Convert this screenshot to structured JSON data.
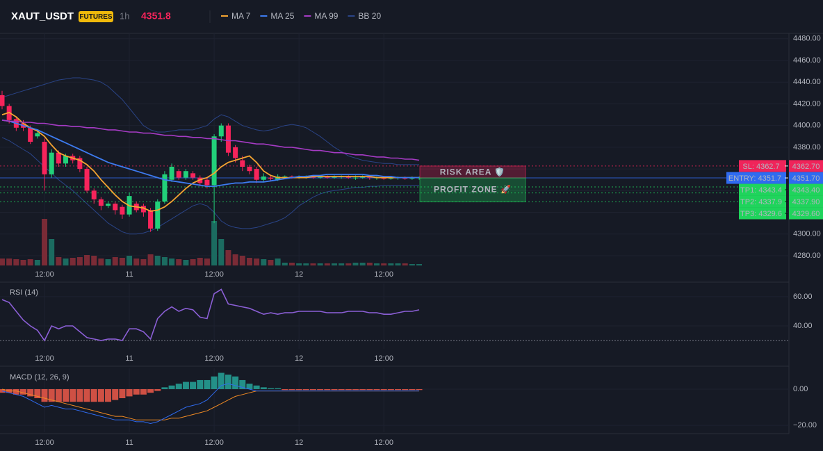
{
  "header": {
    "symbol": "XAUT_USDT",
    "badge": "FUTURES",
    "interval": "1h",
    "price": "4351.8"
  },
  "chart_data": [
    {
      "type": "candlestick",
      "categories": [
        null,
        null,
        null,
        null,
        null,
        null,
        "12:00",
        null,
        null,
        null,
        null,
        null,
        null,
        null,
        null,
        null,
        null,
        null,
        "11",
        null,
        null,
        null,
        null,
        null,
        null,
        null,
        null,
        null,
        null,
        null,
        "12:00",
        null,
        null,
        null,
        null,
        null,
        null,
        null,
        null,
        null,
        null,
        null,
        "12",
        null,
        null,
        null,
        null,
        null,
        null,
        null,
        null,
        null,
        null,
        null,
        "12:00",
        null,
        null,
        null,
        null,
        null
      ],
      "open": [
        4428,
        4418,
        4406,
        4402,
        4398,
        4390,
        4385,
        4355,
        4375,
        4365,
        4372,
        4370,
        4360,
        4340,
        4332,
        4326,
        4328,
        4325,
        4318,
        4328,
        4326,
        4322,
        4305,
        4330,
        4350,
        4358,
        4352,
        4356,
        4352,
        4350,
        4345,
        4390,
        4400,
        4380,
        4368,
        4362,
        4360,
        4350,
        4352,
        4350,
        4352,
        4353,
        4352,
        4353,
        4353,
        4352,
        4353,
        4352,
        4353,
        4353,
        4352,
        4352,
        4353,
        4352,
        4352,
        4351,
        4352,
        4352,
        4351,
        4352
      ],
      "high": [
        4432,
        4420,
        4408,
        4405,
        4400,
        4396,
        4388,
        4378,
        4377,
        4374,
        4374,
        4372,
        4362,
        4342,
        4334,
        4330,
        4330,
        4327,
        4338,
        4330,
        4328,
        4324,
        4332,
        4358,
        4365,
        4360,
        4360,
        4358,
        4354,
        4352,
        4392,
        4402,
        4402,
        4382,
        4372,
        4364,
        4362,
        4356,
        4354,
        4355,
        4354,
        4354,
        4354,
        4354,
        4354,
        4354,
        4354,
        4354,
        4354,
        4354,
        4354,
        4354,
        4354,
        4353,
        4353,
        4353,
        4353,
        4353,
        4353,
        4353
      ],
      "low": [
        4415,
        4402,
        4395,
        4395,
        4383,
        4388,
        4340,
        4352,
        4362,
        4362,
        4365,
        4357,
        4338,
        4328,
        4322,
        4324,
        4318,
        4314,
        4316,
        4320,
        4316,
        4302,
        4303,
        4328,
        4348,
        4350,
        4350,
        4350,
        4344,
        4342,
        4310,
        4385,
        4372,
        4366,
        4358,
        4355,
        4347,
        4348,
        4349,
        4349,
        4351,
        4351,
        4351,
        4351,
        4351,
        4351,
        4351,
        4351,
        4351,
        4351,
        4350,
        4351,
        4350,
        4350,
        4350,
        4350,
        4350,
        4350,
        4350,
        4350
      ],
      "close": [
        4418,
        4405,
        4398,
        4398,
        4385,
        4393,
        4355,
        4375,
        4365,
        4372,
        4368,
        4360,
        4340,
        4332,
        4326,
        4328,
        4322,
        4318,
        4335,
        4322,
        4320,
        4305,
        4330,
        4355,
        4362,
        4352,
        4358,
        4352,
        4347,
        4345,
        4390,
        4400,
        4375,
        4370,
        4362,
        4358,
        4350,
        4353,
        4351,
        4353,
        4353,
        4352,
        4353,
        4353,
        4352,
        4353,
        4352,
        4353,
        4353,
        4352,
        4352,
        4353,
        4352,
        4352,
        4351,
        4352,
        4352,
        4351,
        4352,
        4352
      ],
      "volume": [
        10,
        10,
        9,
        8,
        9,
        8,
        67,
        38,
        12,
        10,
        11,
        12,
        15,
        14,
        10,
        9,
        12,
        11,
        14,
        10,
        9,
        16,
        14,
        12,
        10,
        9,
        8,
        9,
        11,
        10,
        64,
        38,
        22,
        16,
        14,
        11,
        10,
        9,
        8,
        10,
        4,
        4,
        3,
        3,
        3,
        3,
        3,
        3,
        3,
        3,
        4,
        4,
        4,
        3,
        3,
        3,
        3,
        3,
        2,
        2
      ],
      "up_color": "#22d07a",
      "down_color": "#f7245b",
      "volume_up_color": "#1b6b60",
      "volume_down_color": "#7a2b36",
      "series": [
        {
          "name": "MA 7",
          "color": "#f5a431",
          "values": [
            4410,
            4412,
            4408,
            4402,
            4398,
            4395,
            4390,
            4382,
            4375,
            4372,
            4370,
            4368,
            4364,
            4358,
            4350,
            4343,
            4336,
            4330,
            4326,
            4325,
            4324,
            4321,
            4322,
            4325,
            4330,
            4336,
            4342,
            4347,
            4350,
            4352,
            4356,
            4362,
            4366,
            4368,
            4370,
            4372,
            4366,
            4358,
            4354,
            4352,
            4352,
            4352,
            4352,
            4352,
            4353,
            4353,
            4353,
            4353,
            4353,
            4353,
            4353,
            4353,
            4353,
            4352,
            4352,
            4352,
            4352,
            4352,
            4352,
            4352
          ]
        },
        {
          "name": "MA 25",
          "color": "#3d7bf0",
          "values": [
            4405,
            4404,
            4402,
            4400,
            4398,
            4396,
            4393,
            4390,
            4387,
            4384,
            4381,
            4378,
            4375,
            4372,
            4369,
            4366,
            4364,
            4362,
            4360,
            4358,
            4356,
            4354,
            4352,
            4350,
            4349,
            4348,
            4347,
            4346,
            4345,
            4344,
            4344,
            4345,
            4346,
            4347,
            4347,
            4348,
            4348,
            4348,
            4349,
            4350,
            4351,
            4352,
            4353,
            4353,
            4354,
            4354,
            4355,
            4355,
            4355,
            4355,
            4355,
            4355,
            4354,
            4354,
            4353,
            4353,
            4352,
            4352,
            4352,
            4352
          ]
        },
        {
          "name": "MA 99",
          "color": "#a53bc4",
          "values": [
            4405,
            4404,
            4404,
            4403,
            4403,
            4402,
            4402,
            4401,
            4400,
            4400,
            4399,
            4399,
            4398,
            4398,
            4397,
            4396,
            4396,
            4395,
            4394,
            4394,
            4393,
            4393,
            4392,
            4391,
            4391,
            4390,
            4390,
            4389,
            4389,
            4388,
            4388,
            4387,
            4386,
            4386,
            4385,
            4384,
            4383,
            4383,
            4382,
            4381,
            4380,
            4380,
            4379,
            4378,
            4377,
            4377,
            4376,
            4375,
            4375,
            4374,
            4373,
            4373,
            4372,
            4371,
            4371,
            4370,
            4370,
            4369,
            4369,
            4368
          ]
        },
        {
          "name": "BB 20",
          "color": "#2a4487",
          "upper": [
            4426,
            4428,
            4430,
            4432,
            4434,
            4436,
            4438,
            4440,
            4442,
            4443,
            4444,
            4444,
            4443,
            4442,
            4440,
            4436,
            4430,
            4424,
            4416,
            4408,
            4400,
            4396,
            4394,
            4394,
            4395,
            4396,
            4396,
            4396,
            4398,
            4400,
            4406,
            4410,
            4408,
            4404,
            4400,
            4398,
            4396,
            4395,
            4396,
            4398,
            4400,
            4401,
            4400,
            4398,
            4394,
            4390,
            4385,
            4380,
            4376,
            4372,
            4370,
            4368,
            4367,
            4366,
            4365,
            4365,
            4364,
            4364,
            4364,
            4364
          ],
          "lower": [
            4389,
            4386,
            4382,
            4378,
            4374,
            4368,
            4362,
            4356,
            4350,
            4345,
            4340,
            4334,
            4328,
            4322,
            4316,
            4310,
            4306,
            4302,
            4300,
            4300,
            4301,
            4303,
            4306,
            4310,
            4314,
            4318,
            4322,
            4326,
            4328,
            4326,
            4320,
            4312,
            4308,
            4306,
            4305,
            4305,
            4306,
            4308,
            4310,
            4312,
            4315,
            4320,
            4326,
            4330,
            4334,
            4337,
            4339,
            4340,
            4341,
            4342,
            4343,
            4343,
            4344,
            4344,
            4345,
            4345,
            4345,
            4345,
            4345,
            4345
          ]
        }
      ],
      "ylim": [
        4271,
        4485
      ],
      "yticks": [
        {
          "value": 4280,
          "label": "4280.00"
        },
        {
          "value": 4300,
          "label": "4300.00"
        },
        {
          "value": 4320,
          "label": "4320.00"
        },
        {
          "value": 4340,
          "label": "4340.00"
        },
        {
          "value": 4360,
          "label": "4360.00"
        },
        {
          "value": 4380,
          "label": "4380.00"
        },
        {
          "value": 4400,
          "label": "4400.00"
        },
        {
          "value": 4420,
          "label": "4420.00"
        },
        {
          "value": 4440,
          "label": "4440.00"
        },
        {
          "value": 4460,
          "label": "4460.00"
        },
        {
          "value": 4480,
          "label": "4480.00"
        }
      ],
      "levels": [
        {
          "label": "SL: 4362.7",
          "value_label": "4362.70",
          "value": 4362.7,
          "color": "#f0245a",
          "text_color": "#ffffff",
          "line_style": "dotted"
        },
        {
          "label": "ENTRY: 4351.7",
          "value_label": "4351.70",
          "value": 4351.7,
          "color": "#2f6bf0",
          "text_color": "#ffffff",
          "line_style": "solid"
        },
        {
          "label": "TP1: 4343.4",
          "value_label": "4343.40",
          "value": 4343.4,
          "color": "#1fd45c",
          "text_color": "#0b1a10",
          "line_style": "dotted"
        },
        {
          "label": "TP2: 4337.9",
          "value_label": "4337.90",
          "value": 4337.9,
          "color": "#1fd45c",
          "text_color": "#0b1a10",
          "line_style": "dotted"
        },
        {
          "label": "TP3: 4329.6",
          "value_label": "4329.60",
          "value": 4329.6,
          "color": "#1fd45c",
          "text_color": "#0b1a10",
          "line_style": "dotted"
        }
      ],
      "zones": [
        {
          "label": "RISK AREA 🛡️",
          "range": [
            4351.7,
            4362.7
          ],
          "color": "#f0245a"
        },
        {
          "label": "PROFIT ZONE 🚀",
          "range": [
            4329.6,
            4351.7
          ],
          "color": "#1fd45c"
        }
      ]
    },
    {
      "type": "line",
      "title": "RSI (14)",
      "color": "#8b5fd6",
      "values": [
        58,
        56,
        50,
        44,
        40,
        37,
        30,
        40,
        38,
        40,
        40,
        36,
        32,
        31,
        30,
        31,
        31,
        30,
        38,
        38,
        36,
        31,
        45,
        50,
        53,
        50,
        52,
        51,
        46,
        45,
        62,
        65,
        55,
        54,
        53,
        52,
        50,
        48,
        49,
        48,
        49,
        49,
        50,
        50,
        50,
        50,
        49,
        49,
        49,
        50,
        50,
        50,
        49,
        49,
        48,
        48,
        49,
        50,
        50,
        51
      ],
      "ylim": [
        24.3,
        69
      ],
      "yticks": [
        {
          "value": 40,
          "label": "40.00"
        },
        {
          "value": 60,
          "label": "60.00"
        }
      ],
      "ref_line": 30
    },
    {
      "type": "macd",
      "title": "MACD (12, 26, 9)",
      "macd": [
        -1,
        -2,
        -3,
        -4,
        -6,
        -8,
        -10,
        -9,
        -10,
        -11,
        -11,
        -12,
        -13,
        -14,
        -15,
        -16,
        -17,
        -17,
        -17,
        -18,
        -18,
        -19,
        -18,
        -16,
        -14,
        -12,
        -10,
        -9,
        -8,
        -6,
        -2,
        2,
        3,
        2,
        1,
        0,
        -1,
        -1,
        -1,
        -1,
        -1,
        -1,
        -1,
        -1,
        -1,
        -1,
        -1,
        -1,
        -1,
        -1,
        -1,
        -1,
        -1,
        -1,
        -1,
        -1,
        -1,
        -1,
        -1,
        -1
      ],
      "signal": [
        0,
        -1,
        -1,
        -2,
        -3,
        -4,
        -5,
        -6,
        -7,
        -8,
        -9,
        -10,
        -11,
        -12,
        -13,
        -14,
        -15,
        -15,
        -16,
        -17,
        -17,
        -17,
        -17,
        -17,
        -16,
        -16,
        -15,
        -14,
        -13,
        -12,
        -10,
        -8,
        -6,
        -4,
        -3,
        -2,
        -1,
        -1,
        -1,
        -1,
        -1,
        -1,
        -1,
        -1,
        -1,
        -1,
        -1,
        -1,
        -1,
        -1,
        -1,
        -1,
        -1,
        -1,
        -1,
        -1,
        -1,
        -1,
        -1,
        -1
      ],
      "histogram": [
        -2,
        -2,
        -3,
        -3,
        -4,
        -5,
        -7,
        -7,
        -7,
        -7,
        -7,
        -7,
        -7,
        -7,
        -7,
        -7,
        -6,
        -5,
        -4,
        -3,
        -3,
        -2,
        -1,
        1,
        2,
        3,
        4,
        4,
        5,
        5,
        7,
        9,
        8,
        7,
        5,
        3,
        2,
        1,
        0.5,
        0.5,
        -0.5,
        -0.5,
        -0.5,
        -0.5,
        -0.5,
        -0.5,
        -0.5,
        -0.5,
        -0.5,
        -0.5,
        -0.5,
        -0.5,
        -0.5,
        -0.5,
        -0.5,
        -0.5,
        -0.5,
        -0.5,
        -0.5,
        -0.5
      ],
      "macd_color": "#2f6bf0",
      "signal_color": "#f08a24",
      "up_color": "#26a69a",
      "down_color": "#f05a4a",
      "ylim": [
        -23.8,
        11.5
      ],
      "yticks": [
        {
          "value": -20,
          "label": "−20.00"
        },
        {
          "value": 0,
          "label": "0.00"
        }
      ]
    }
  ]
}
